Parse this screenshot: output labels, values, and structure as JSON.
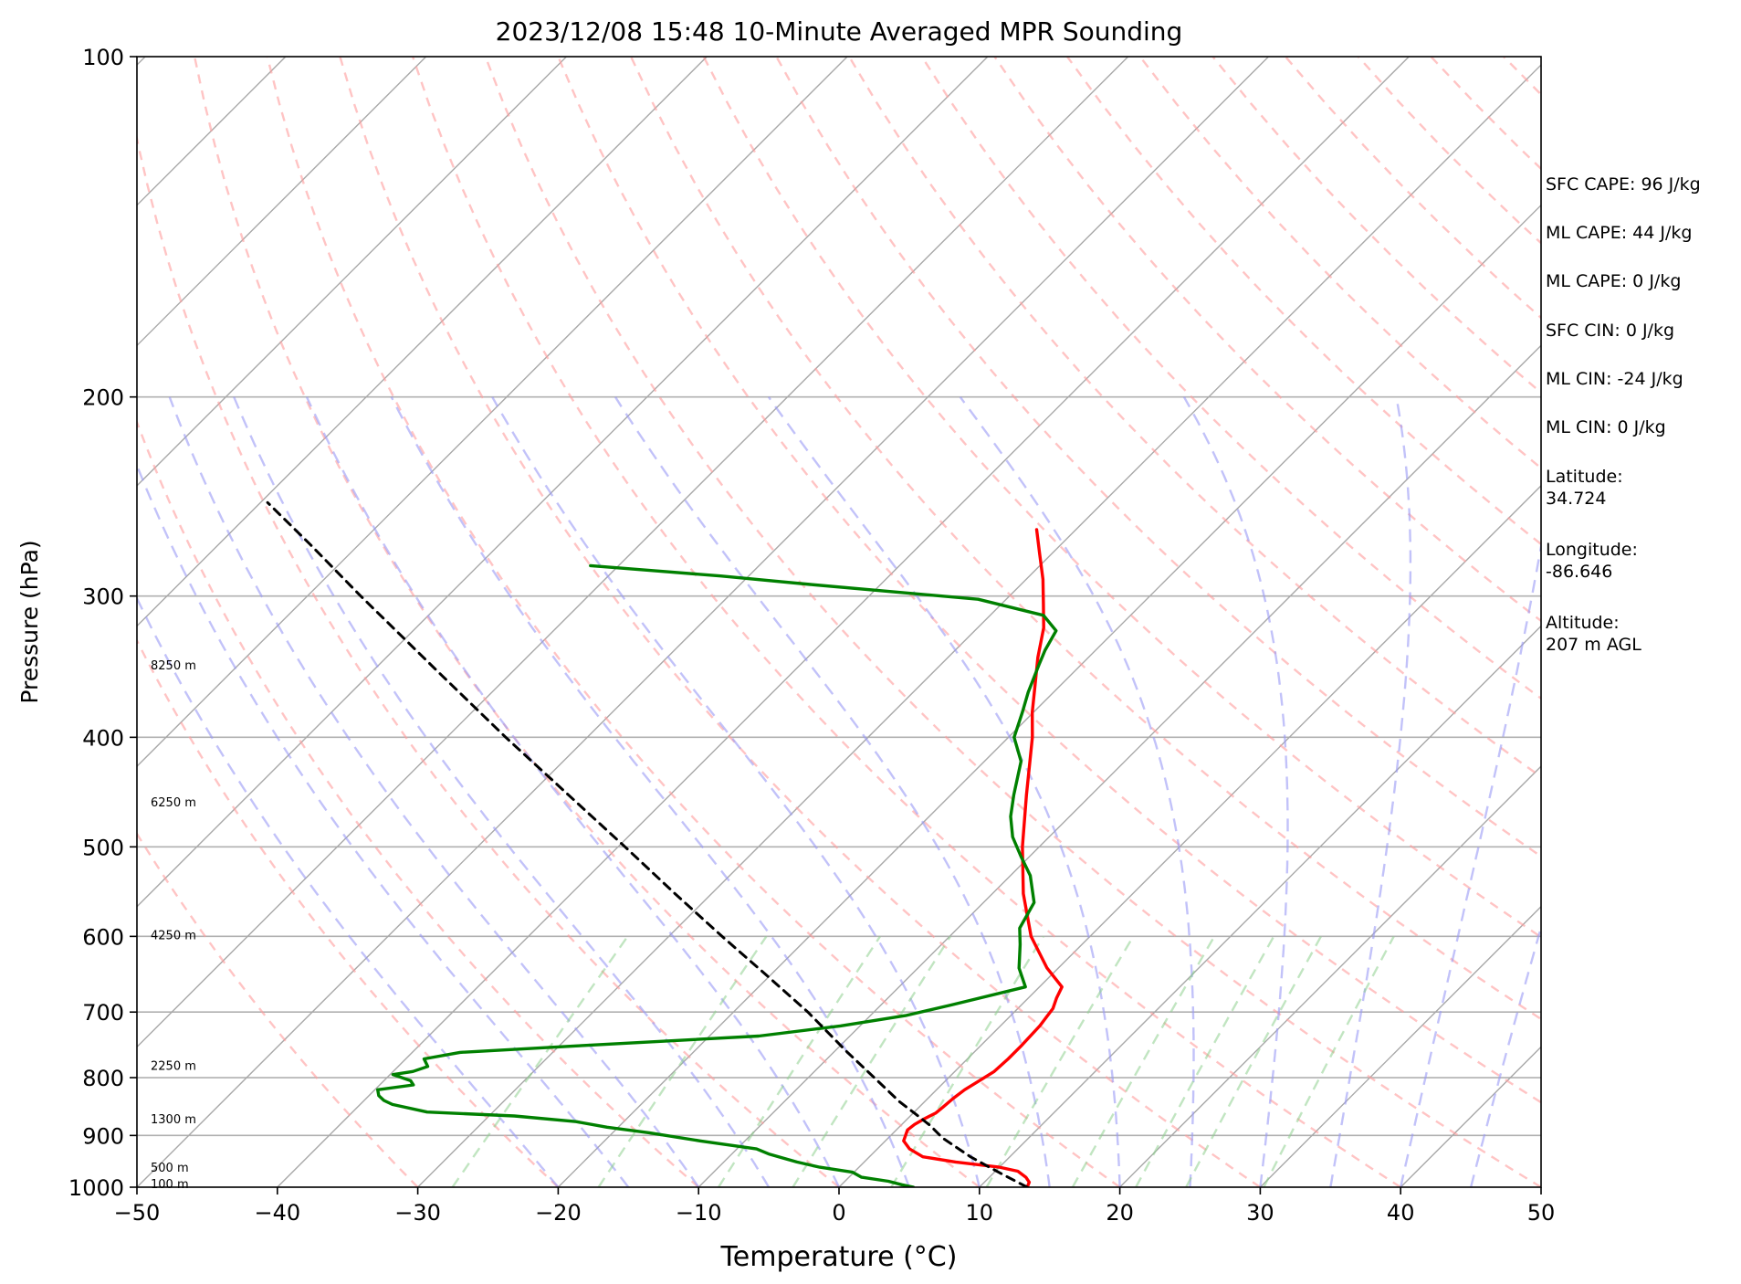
{
  "chart_data": {
    "type": "line",
    "title": "2023/12/08 15:48 10-Minute Averaged MPR Sounding",
    "xlabel": "Temperature (°C)",
    "ylabel": "Pressure (hPa)",
    "xlim": [
      -50,
      50
    ],
    "ylim": [
      1000,
      100
    ],
    "y_scale": "log",
    "grid": true,
    "x_ticks": [
      -50,
      -40,
      -30,
      -20,
      -10,
      0,
      10,
      20,
      30,
      40,
      50
    ],
    "x_tick_labels": [
      "−50",
      "−40",
      "−30",
      "−20",
      "−10",
      "0",
      "10",
      "20",
      "30",
      "40",
      "50"
    ],
    "y_ticks": [
      100,
      200,
      300,
      400,
      500,
      600,
      700,
      800,
      900,
      1000
    ],
    "y_tick_labels": [
      "100",
      "200",
      "300",
      "400",
      "500",
      "600",
      "700",
      "800",
      "900",
      "1000"
    ],
    "skew": 35,
    "height_labels": [
      {
        "label": "8250 m",
        "p": 345
      },
      {
        "label": "6250 m",
        "p": 456
      },
      {
        "label": "4250 m",
        "p": 598
      },
      {
        "label": "2250 m",
        "p": 780
      },
      {
        "label": "1300 m",
        "p": 870
      },
      {
        "label": "500 m",
        "p": 960
      },
      {
        "label": "100 m",
        "p": 993
      }
    ],
    "series": [
      {
        "role": "temperature",
        "color": "#ff0000",
        "points": [
          [
            1000,
            13.4
          ],
          [
            990,
            13.2
          ],
          [
            980,
            12.6
          ],
          [
            968,
            11.6
          ],
          [
            960,
            10.0
          ],
          [
            950,
            6.5
          ],
          [
            940,
            3.8
          ],
          [
            925,
            2.3
          ],
          [
            910,
            1.3
          ],
          [
            890,
            0.8
          ],
          [
            880,
            0.9
          ],
          [
            870,
            1.2
          ],
          [
            860,
            1.6
          ],
          [
            850,
            1.7
          ],
          [
            835,
            1.8
          ],
          [
            820,
            2.0
          ],
          [
            805,
            2.4
          ],
          [
            790,
            2.8
          ],
          [
            770,
            2.9
          ],
          [
            750,
            2.9
          ],
          [
            720,
            2.8
          ],
          [
            695,
            2.5
          ],
          [
            680,
            2.0
          ],
          [
            665,
            1.6
          ],
          [
            640,
            -0.8
          ],
          [
            600,
            -4.2
          ],
          [
            550,
            -7.8
          ],
          [
            500,
            -11.2
          ],
          [
            450,
            -14.6
          ],
          [
            400,
            -18.3
          ],
          [
            380,
            -20.1
          ],
          [
            360,
            -21.8
          ],
          [
            340,
            -23.6
          ],
          [
            320,
            -25.3
          ],
          [
            305,
            -27.0
          ],
          [
            290,
            -28.8
          ],
          [
            275,
            -30.9
          ],
          [
            262,
            -32.8
          ]
        ]
      },
      {
        "role": "dewpoint",
        "color": "#008000",
        "points": [
          [
            1000,
            5.3
          ],
          [
            995,
            4.3
          ],
          [
            988,
            3.1
          ],
          [
            980,
            0.9
          ],
          [
            970,
            -0.1
          ],
          [
            960,
            -2.8
          ],
          [
            950,
            -4.8
          ],
          [
            935,
            -7.3
          ],
          [
            925,
            -8.6
          ],
          [
            910,
            -13.2
          ],
          [
            895,
            -17.4
          ],
          [
            885,
            -20.8
          ],
          [
            875,
            -23.4
          ],
          [
            865,
            -28.2
          ],
          [
            858,
            -34.7
          ],
          [
            845,
            -37.7
          ],
          [
            838,
            -38.6
          ],
          [
            830,
            -39.3
          ],
          [
            820,
            -39.8
          ],
          [
            812,
            -37.6
          ],
          [
            805,
            -38.1
          ],
          [
            795,
            -39.8
          ],
          [
            790,
            -38.6
          ],
          [
            782,
            -37.9
          ],
          [
            770,
            -38.7
          ],
          [
            760,
            -36.6
          ],
          [
            750,
            -28.8
          ],
          [
            735,
            -16.5
          ],
          [
            720,
            -11.4
          ],
          [
            705,
            -7.5
          ],
          [
            690,
            -5.0
          ],
          [
            665,
            -1.0
          ],
          [
            640,
            -2.8
          ],
          [
            610,
            -4.4
          ],
          [
            590,
            -5.6
          ],
          [
            560,
            -6.4
          ],
          [
            530,
            -8.6
          ],
          [
            510,
            -10.6
          ],
          [
            490,
            -12.6
          ],
          [
            470,
            -14.2
          ],
          [
            450,
            -15.5
          ],
          [
            420,
            -17.4
          ],
          [
            400,
            -19.6
          ],
          [
            380,
            -20.8
          ],
          [
            365,
            -21.8
          ],
          [
            345,
            -23.0
          ],
          [
            335,
            -23.6
          ],
          [
            322,
            -24.2
          ],
          [
            312,
            -26.2
          ],
          [
            302,
            -32.0
          ],
          [
            293,
            -45.0
          ],
          [
            288,
            -52.0
          ],
          [
            285,
            -57.0
          ],
          [
            282,
            -62.0
          ]
        ]
      },
      {
        "role": "parcel",
        "color": "#000000",
        "dashed": true,
        "points": [
          [
            1000,
            13.4
          ],
          [
            970,
            10.3
          ],
          [
            940,
            7.2
          ],
          [
            905,
            3.9
          ],
          [
            882,
            2.1
          ],
          [
            860,
            0.1
          ],
          [
            840,
            -1.8
          ],
          [
            800,
            -5.3
          ],
          [
            760,
            -9.0
          ],
          [
            700,
            -14.7
          ],
          [
            650,
            -20.2
          ],
          [
            600,
            -26.2
          ],
          [
            550,
            -32.6
          ],
          [
            500,
            -39.5
          ],
          [
            450,
            -47.2
          ],
          [
            400,
            -55.8
          ],
          [
            350,
            -65.3
          ],
          [
            300,
            -76.2
          ],
          [
            270,
            -83.5
          ],
          [
            248,
            -89.5
          ]
        ]
      }
    ],
    "annotations": [
      "SFC CAPE: 96 J/kg",
      "ML CAPE: 44 J/kg",
      "ML CAPE: 0 J/kg",
      "SFC CIN: 0 J/kg",
      "ML CIN: -24 J/kg",
      "ML CIN: 0 J/kg",
      "Latitude:\n34.724",
      "Longitude:\n-86.646",
      "Altitude:\n207 m AGL"
    ]
  }
}
